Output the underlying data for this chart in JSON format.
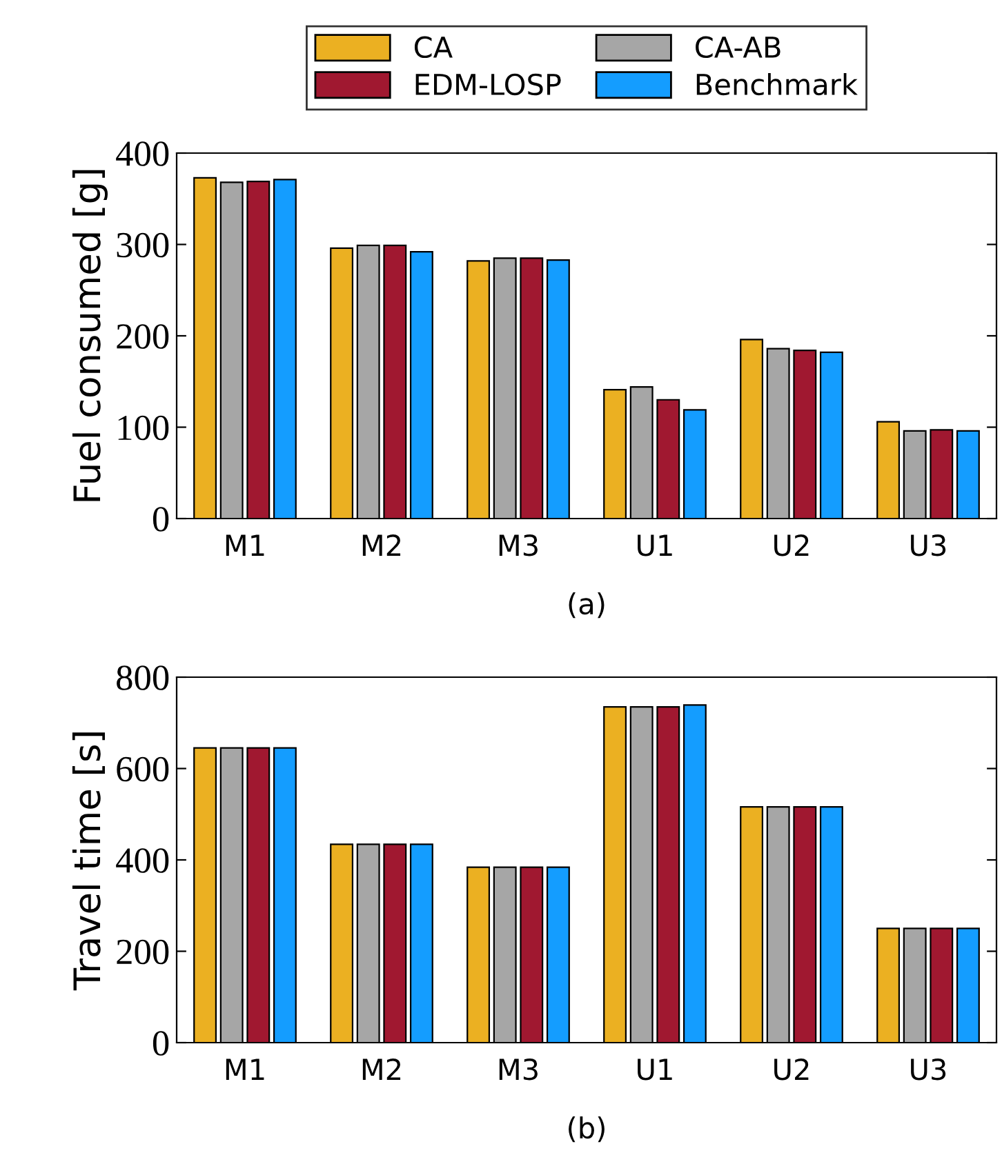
{
  "chart_data": [
    {
      "type": "bar",
      "ylabel": "Fuel consumed [g]",
      "categories": [
        "M1",
        "M2",
        "M3",
        "U1",
        "U2",
        "U3"
      ],
      "series": [
        {
          "name": "CA",
          "color": "#ebb022",
          "values": [
            373,
            296,
            282,
            141,
            196,
            106
          ]
        },
        {
          "name": "CA-AB",
          "color": "#a6a6a6",
          "values": [
            368,
            299,
            285,
            144,
            186,
            96
          ]
        },
        {
          "name": "EDM-LOSP",
          "color": "#a01830",
          "values": [
            369,
            299,
            285,
            130,
            184,
            97
          ]
        },
        {
          "name": "Benchmark",
          "color": "#149dff",
          "values": [
            371,
            292,
            283,
            119,
            182,
            96
          ]
        }
      ],
      "ylim": [
        0,
        400
      ],
      "yticks": [
        0,
        100,
        200,
        300,
        400
      ],
      "legend": "top",
      "grid": false,
      "annotations": [
        "(a)"
      ]
    },
    {
      "type": "bar",
      "ylabel": "Travel time [s]",
      "categories": [
        "M1",
        "M2",
        "M3",
        "U1",
        "U2",
        "U3"
      ],
      "series": [
        {
          "color": "#ebb022",
          "values": [
            645,
            434,
            384,
            735,
            516,
            250
          ]
        },
        {
          "color": "#a6a6a6",
          "values": [
            645,
            434,
            384,
            735,
            516,
            250
          ]
        },
        {
          "color": "#a01830",
          "values": [
            645,
            434,
            384,
            735,
            516,
            250
          ]
        },
        {
          "color": "#149dff",
          "values": [
            645,
            434,
            384,
            739,
            516,
            250
          ]
        }
      ],
      "ylim": [
        0,
        800
      ],
      "yticks": [
        0,
        200,
        400,
        600,
        800
      ],
      "legend": false,
      "grid": false,
      "annotations": [
        "(b)"
      ]
    }
  ]
}
